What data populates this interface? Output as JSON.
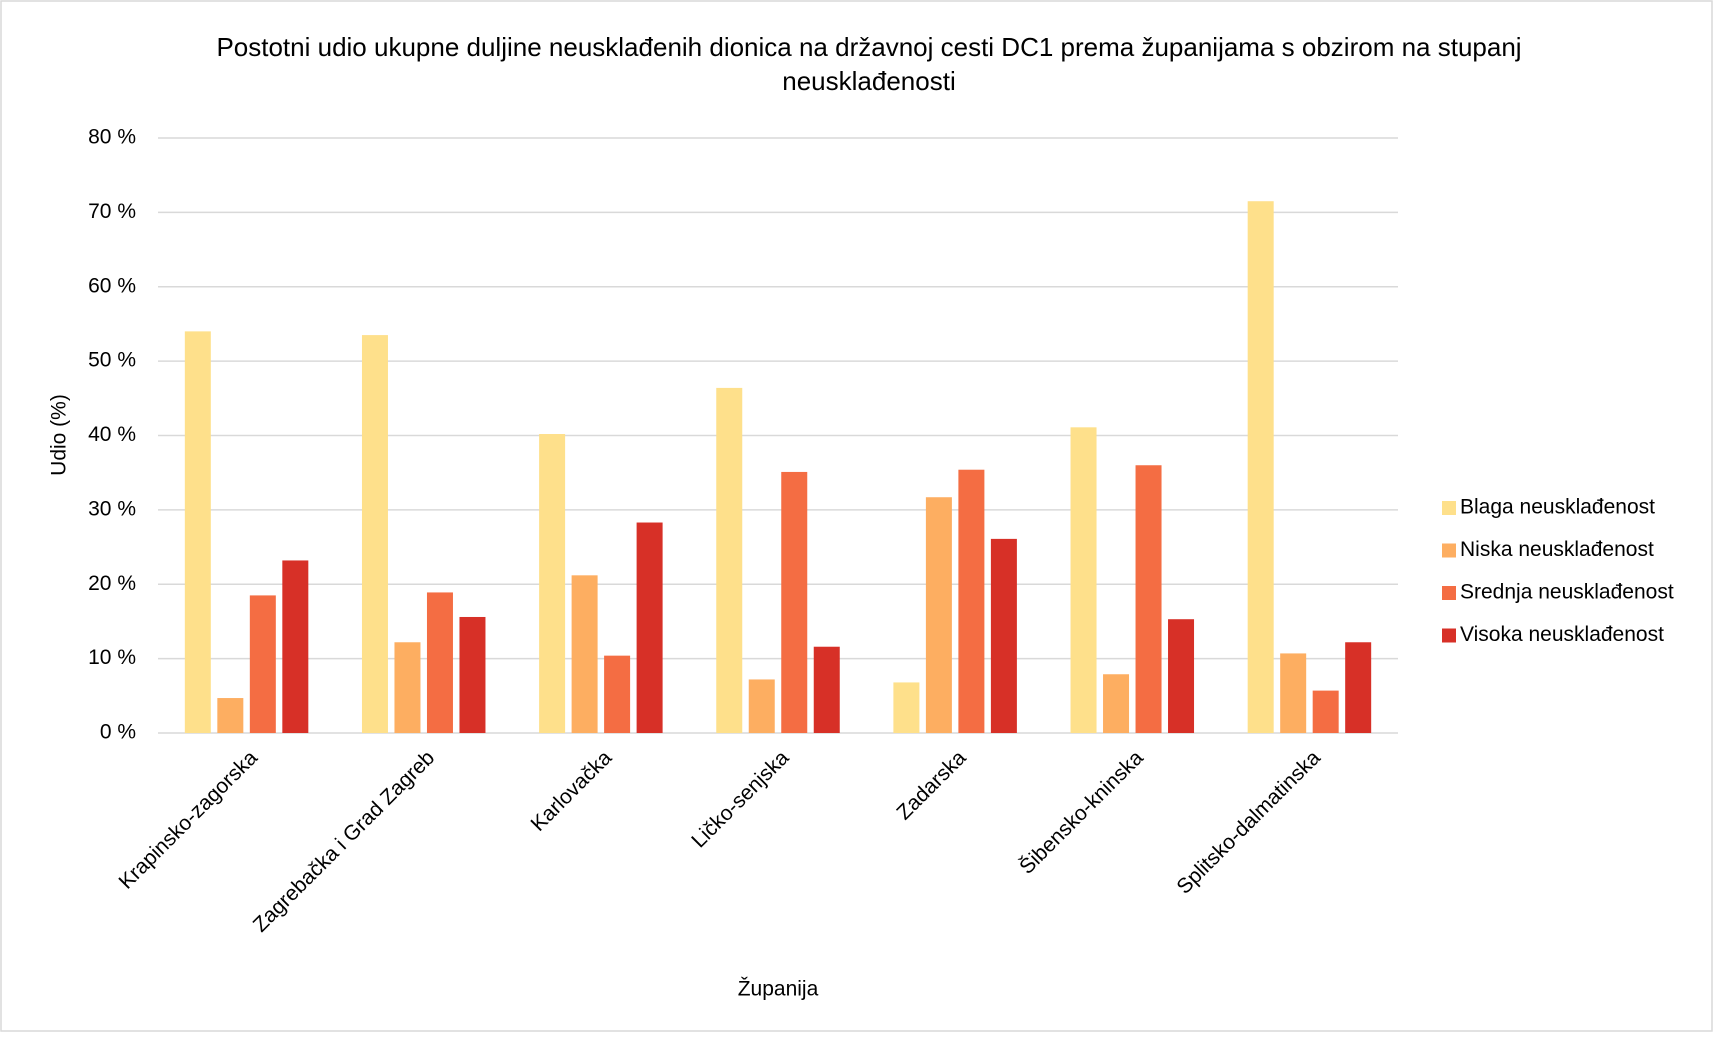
{
  "chart_data": {
    "type": "bar",
    "title": "Postotni udio ukupne duljine neusklađenih dionica na državnoj cesti DC1 prema županijama s obzirom na stupanj neusklađenosti",
    "x_label": "Županija",
    "y_label": "Udio (%)",
    "categories": [
      "Krapinsko-zagorska",
      "Zagrebačka i Grad Zagreb",
      "Karlovačka",
      "Ličko-senjska",
      "Zadarska",
      "Šibensko-kninska",
      "Splitsko-dalmatinska"
    ],
    "series": [
      {
        "name": "Blaga neusklađenost",
        "color": "#fee08b",
        "values": [
          54.0,
          53.5,
          40.2,
          46.4,
          6.8,
          41.1,
          71.5
        ]
      },
      {
        "name": "Niska neusklađenost",
        "color": "#fdae61",
        "values": [
          4.7,
          12.2,
          21.2,
          7.2,
          31.7,
          7.9,
          10.7
        ]
      },
      {
        "name": "Srednja neusklađenost",
        "color": "#f46d43",
        "values": [
          18.5,
          18.9,
          10.4,
          35.1,
          35.4,
          36.0,
          5.7
        ]
      },
      {
        "name": "Visoka neusklađenost",
        "color": "#d73027",
        "values": [
          23.2,
          15.6,
          28.3,
          11.6,
          26.1,
          15.3,
          12.2
        ]
      }
    ],
    "ylim": [
      0,
      80
    ],
    "yticks": [
      {
        "value": 0,
        "label": "0 %"
      },
      {
        "value": 10,
        "label": "10 %"
      },
      {
        "value": 20,
        "label": "20 %"
      },
      {
        "value": 30,
        "label": "30 %"
      },
      {
        "value": 40,
        "label": "40 %"
      },
      {
        "value": 50,
        "label": "50 %"
      },
      {
        "value": 60,
        "label": "60 %"
      },
      {
        "value": 70,
        "label": "70 %"
      },
      {
        "value": 80,
        "label": "80 %"
      }
    ],
    "grid": true,
    "legend": "right"
  }
}
